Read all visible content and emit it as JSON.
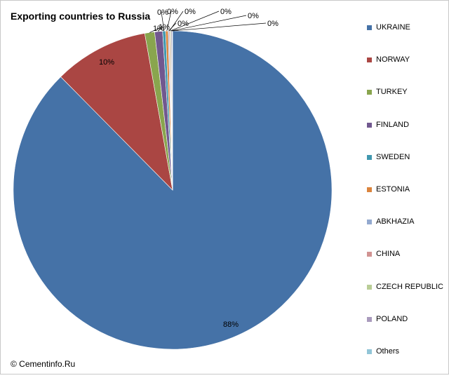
{
  "chart_data": {
    "type": "pie",
    "title": "Exporting countries to Russia",
    "categories": [
      "UKRAINE",
      "NORWAY",
      "TURKEY",
      "FINLAND",
      "SWEDEN",
      "ESTONIA",
      "ABKHAZIA",
      "CHINA",
      "CZECH REPUBLIC",
      "POLAND",
      "Others"
    ],
    "values": [
      87.6,
      9.6,
      1.0,
      0.8,
      0.3,
      0.25,
      0.1,
      0.1,
      0.1,
      0.1,
      0.05
    ],
    "data_labels": [
      "88%",
      "10%",
      "1%",
      "1%",
      "0%",
      "0%",
      "0%",
      "0%",
      "0%",
      "0%",
      "0%"
    ],
    "colors": [
      "#4572a7",
      "#aa4643",
      "#89a54e",
      "#71588f",
      "#4198af",
      "#db843d",
      "#93a9cf",
      "#d19392",
      "#b9cd96",
      "#a99bbd",
      "#92c5d7"
    ],
    "legend_position": "right",
    "start_angle": "top, clockwise"
  },
  "footer": {
    "copyright": "© Cementinfo.Ru"
  }
}
